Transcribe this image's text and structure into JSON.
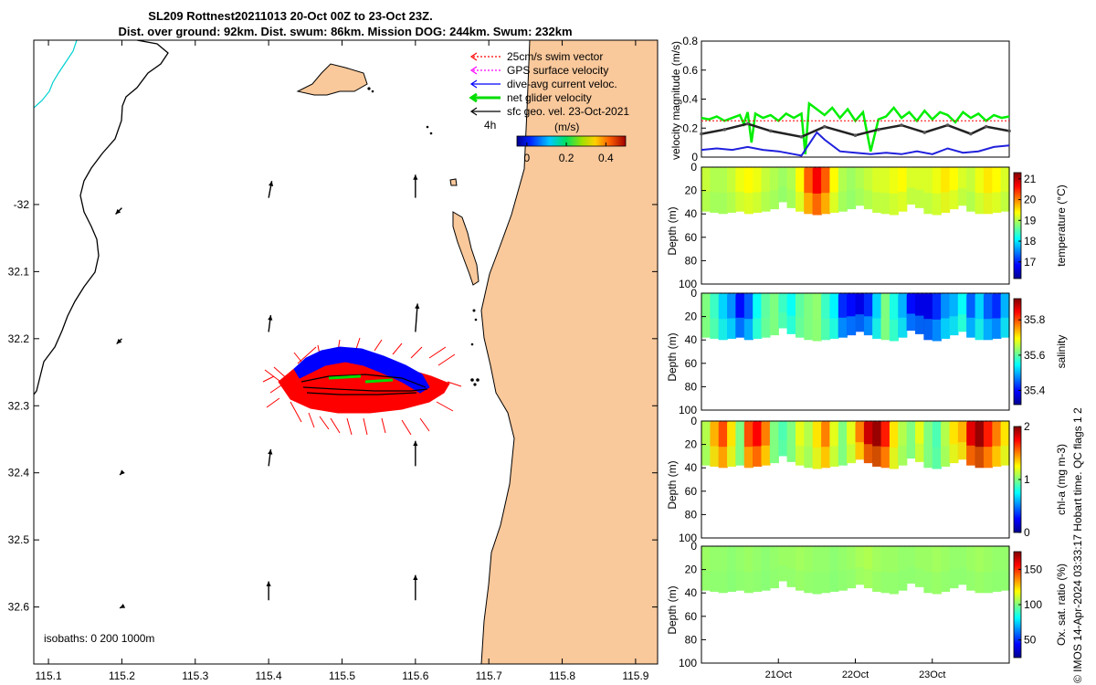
{
  "title_line1": "SL209 Rottnest20211013 20-Oct 00Z to 23-Oct 23Z.",
  "title_line2": "Dist. over ground: 92km. Dist. swum: 86km. Mission DOG: 244km. Swum: 232km",
  "footer": "© IMOS 14-Apr-2024 03:33:17 Hobart time. QC flags 1  2",
  "colors": {
    "land": "#f9c89b",
    "swim": "#ff0000",
    "gps": "#ff00ff",
    "dive": "#0000ff",
    "net": "#00dd00",
    "sfc": "#000000",
    "isobath0": "#00d0d0"
  },
  "chart_data": [
    {
      "type": "map",
      "xlim": [
        115.08,
        115.93
      ],
      "ylim": [
        -32.685,
        -31.755
      ],
      "x_ticks": [
        115.1,
        115.2,
        115.3,
        115.4,
        115.5,
        115.6,
        115.7,
        115.8,
        115.9
      ],
      "x_tick_labels": [
        "115.1",
        "115.2",
        "115.3",
        "115.4",
        "115.5",
        "115.6",
        "115.7",
        "115.8",
        "115.9"
      ],
      "y_ticks": [
        -32.0,
        -32.1,
        -32.2,
        -32.3,
        -32.4,
        -32.5,
        -32.6
      ],
      "y_tick_labels": [
        "-32",
        "32.1",
        "32.2",
        "32.3",
        "32.4",
        "32.5",
        "32.6"
      ],
      "legend": [
        {
          "label": "25cm/s swim vector",
          "color": "#ff0000",
          "style": "dotted-arrow"
        },
        {
          "label": "GPS surface velocity",
          "color": "#ff00ff",
          "style": "dotted-arrow"
        },
        {
          "label": "dive-avg current veloc.",
          "color": "#0000ff",
          "style": "arrow"
        },
        {
          "label": "net glider velocity",
          "color": "#00dd00",
          "style": "thick-arrow"
        },
        {
          "label": "sfc geo. vel. 23-Oct-2021",
          "color": "#000000",
          "style": "arrow"
        }
      ],
      "legend_note": "4h",
      "colorbar": {
        "label": "(m/s)",
        "ticks": [
          0,
          0.2,
          0.4
        ],
        "tick_labels": [
          "0",
          "0.2",
          "0.4"
        ],
        "range": [
          -0.05,
          0.5
        ]
      },
      "isobath_label": "isobaths: 0   200  1000m",
      "sfc_vectors": [
        {
          "lon": 115.2,
          "lat": -32.005,
          "u": -0.06,
          "v": -0.06
        },
        {
          "lon": 115.2,
          "lat": -32.2,
          "u": -0.05,
          "v": -0.05
        },
        {
          "lon": 115.2,
          "lat": -32.4,
          "u": -0.02,
          "v": -0.02
        },
        {
          "lon": 115.2,
          "lat": -32.6,
          "u": -0.02,
          "v": -0.01
        },
        {
          "lon": 115.4,
          "lat": -31.99,
          "u": 0.03,
          "v": 0.16
        },
        {
          "lon": 115.4,
          "lat": -32.19,
          "u": 0.02,
          "v": 0.16
        },
        {
          "lon": 115.4,
          "lat": -32.39,
          "u": 0.02,
          "v": 0.16
        },
        {
          "lon": 115.4,
          "lat": -32.59,
          "u": 0.0,
          "v": 0.18
        },
        {
          "lon": 115.6,
          "lat": -31.99,
          "u": 0.0,
          "v": 0.22
        },
        {
          "lon": 115.6,
          "lat": -32.19,
          "u": 0.02,
          "v": 0.27
        },
        {
          "lon": 115.6,
          "lat": -32.39,
          "u": 0.0,
          "v": 0.24
        },
        {
          "lon": 115.6,
          "lat": -32.59,
          "u": 0.0,
          "v": 0.24
        }
      ]
    },
    {
      "type": "line",
      "ylabel": "velocity magnitude (m/s)",
      "ylim": [
        0,
        0.8
      ],
      "y_ticks": [
        0,
        0.2,
        0.4,
        0.6,
        0.8
      ],
      "y_tick_labels": [
        "0",
        "0.2",
        "0.4",
        "0.6",
        "0.8"
      ],
      "xlim": [
        20.0,
        24.0
      ],
      "series": [
        {
          "color": "#00ee00",
          "width": 2.5,
          "x": [
            20.0,
            20.1,
            20.2,
            20.3,
            20.4,
            20.5,
            20.55,
            20.6,
            20.65,
            20.7,
            20.8,
            20.9,
            21.0,
            21.1,
            21.2,
            21.3,
            21.35,
            21.4,
            21.5,
            21.6,
            21.7,
            21.8,
            21.9,
            22.0,
            22.1,
            22.2,
            22.3,
            22.4,
            22.5,
            22.6,
            22.7,
            22.8,
            22.9,
            23.0,
            23.1,
            23.2,
            23.3,
            23.4,
            23.5,
            23.6,
            23.7,
            23.8,
            23.9,
            24.0
          ],
          "y": [
            0.27,
            0.26,
            0.28,
            0.25,
            0.27,
            0.29,
            0.23,
            0.31,
            0.1,
            0.3,
            0.27,
            0.29,
            0.25,
            0.3,
            0.27,
            0.3,
            0.02,
            0.37,
            0.33,
            0.29,
            0.34,
            0.27,
            0.33,
            0.25,
            0.31,
            0.04,
            0.26,
            0.28,
            0.34,
            0.27,
            0.31,
            0.25,
            0.32,
            0.26,
            0.31,
            0.29,
            0.24,
            0.31,
            0.27,
            0.3,
            0.25,
            0.29,
            0.27,
            0.28
          ]
        },
        {
          "color": "#ff0000",
          "width": 1,
          "dash": "2,2",
          "x": [
            20.0,
            20.5,
            21.0,
            21.5,
            22.0,
            22.5,
            23.0,
            23.5,
            24.0
          ],
          "y": [
            0.25,
            0.25,
            0.25,
            0.25,
            0.25,
            0.25,
            0.25,
            0.25,
            0.25
          ]
        },
        {
          "color": "#222222",
          "width": 2.5,
          "x": [
            20.0,
            20.3,
            20.6,
            20.9,
            21.3,
            21.6,
            22.0,
            22.3,
            22.6,
            22.9,
            23.2,
            23.5,
            23.7,
            24.0
          ],
          "y": [
            0.16,
            0.19,
            0.23,
            0.18,
            0.14,
            0.21,
            0.15,
            0.19,
            0.22,
            0.17,
            0.22,
            0.16,
            0.21,
            0.18
          ]
        },
        {
          "color": "#2020dd",
          "width": 2,
          "x": [
            20.0,
            20.2,
            20.4,
            20.6,
            20.8,
            21.0,
            21.2,
            21.3,
            21.5,
            21.6,
            21.8,
            22.0,
            22.2,
            22.4,
            22.6,
            22.8,
            23.0,
            23.2,
            23.4,
            23.6,
            23.8,
            24.0
          ],
          "y": [
            0.05,
            0.06,
            0.05,
            0.07,
            0.05,
            0.04,
            0.02,
            0.01,
            0.17,
            0.12,
            0.04,
            0.03,
            0.02,
            0.03,
            0.02,
            0.04,
            0.02,
            0.06,
            0.03,
            0.04,
            0.07,
            0.08
          ]
        }
      ]
    },
    {
      "type": "heatmap",
      "variable": "temperature",
      "cbar_label": "temperature (°C)",
      "clim": [
        16.2,
        21.3
      ],
      "cbar_ticks": [
        17,
        18,
        19,
        20,
        21
      ],
      "cbar_tick_labels": [
        "17",
        "18",
        "19",
        "20",
        "21"
      ],
      "ylabel": "Depth (m)",
      "ylim": [
        0,
        100
      ],
      "y_ticks": [
        0,
        20,
        40,
        60,
        80,
        100
      ],
      "y_tick_labels": [
        "0",
        "20",
        "40",
        "60",
        "80",
        "100"
      ],
      "columns": [
        19.1,
        19.0,
        19.0,
        19.1,
        19.3,
        19.4,
        19.3,
        19.1,
        19.0,
        18.9,
        19.0,
        19.4,
        20.2,
        20.7,
        20.2,
        19.4,
        19.0,
        18.9,
        19.0,
        19.1,
        19.2,
        19.2,
        19.3,
        19.4,
        19.2,
        19.2,
        19.2,
        19.3,
        19.5,
        19.4,
        19.2,
        19.1,
        19.3,
        19.5,
        19.4,
        19.2
      ]
    },
    {
      "type": "heatmap",
      "variable": "salinity",
      "cbar_label": "salinity",
      "clim": [
        35.32,
        35.92
      ],
      "cbar_ticks": [
        35.4,
        35.6,
        35.8
      ],
      "cbar_tick_labels": [
        "35.4",
        "35.6",
        "35.8"
      ],
      "ylabel": "Depth (m)",
      "ylim": [
        0,
        100
      ],
      "y_ticks": [
        0,
        20,
        40,
        60,
        80,
        100
      ],
      "y_tick_labels": [
        "0",
        "20",
        "40",
        "60",
        "80",
        "100"
      ],
      "columns": [
        35.62,
        35.58,
        35.52,
        35.48,
        35.4,
        35.45,
        35.55,
        35.6,
        35.62,
        35.58,
        35.55,
        35.6,
        35.62,
        35.63,
        35.58,
        35.54,
        35.42,
        35.4,
        35.38,
        35.42,
        35.52,
        35.62,
        35.56,
        35.5,
        35.4,
        35.38,
        35.38,
        35.42,
        35.48,
        35.5,
        35.55,
        35.45,
        35.52,
        35.45,
        35.42,
        35.5
      ]
    },
    {
      "type": "heatmap",
      "variable": "chl-a",
      "cbar_label": "chl-a (mg m-3)",
      "clim": [
        0,
        2
      ],
      "cbar_ticks": [
        0,
        1,
        2
      ],
      "cbar_tick_labels": [
        "0",
        "1",
        "2"
      ],
      "ylabel": "Depth (m)",
      "ylim": [
        0,
        100
      ],
      "y_ticks": [
        0,
        20,
        40,
        60,
        80,
        100
      ],
      "y_tick_labels": [
        "0",
        "20",
        "40",
        "60",
        "80",
        "100"
      ],
      "columns": [
        1.1,
        1.4,
        1.6,
        1.3,
        1.0,
        1.6,
        1.75,
        1.5,
        1.0,
        0.9,
        1.0,
        1.2,
        1.1,
        1.3,
        1.5,
        1.2,
        1.0,
        1.2,
        1.5,
        1.85,
        1.95,
        1.7,
        1.3,
        1.1,
        1.0,
        1.2,
        1.0,
        0.9,
        1.1,
        1.3,
        1.4,
        1.8,
        1.95,
        1.7,
        1.5,
        1.3
      ]
    },
    {
      "type": "heatmap",
      "variable": "oxygen saturation",
      "cbar_label": "Ox. sat. ratio (%)",
      "clim": [
        25,
        175
      ],
      "cbar_ticks": [
        50,
        100,
        150
      ],
      "cbar_tick_labels": [
        "50",
        "100",
        "150"
      ],
      "ylabel": "Depth (m)",
      "ylim": [
        0,
        100
      ],
      "y_ticks": [
        0,
        20,
        40,
        60,
        80,
        100
      ],
      "y_tick_labels": [
        "0",
        "20",
        "40",
        "60",
        "80",
        "100"
      ],
      "x_ticks": [
        21.0,
        22.0,
        23.0
      ],
      "x_tick_labels": [
        "21Oct",
        "22Oct",
        "23Oct"
      ],
      "columns": [
        104,
        103,
        103,
        102,
        103,
        104,
        103,
        102,
        103,
        104,
        104,
        105,
        104,
        103,
        103,
        102,
        103,
        104,
        106,
        107,
        105,
        104,
        104,
        103,
        103,
        104,
        104,
        105,
        104,
        103,
        103,
        104,
        105,
        104,
        103,
        103
      ]
    }
  ]
}
